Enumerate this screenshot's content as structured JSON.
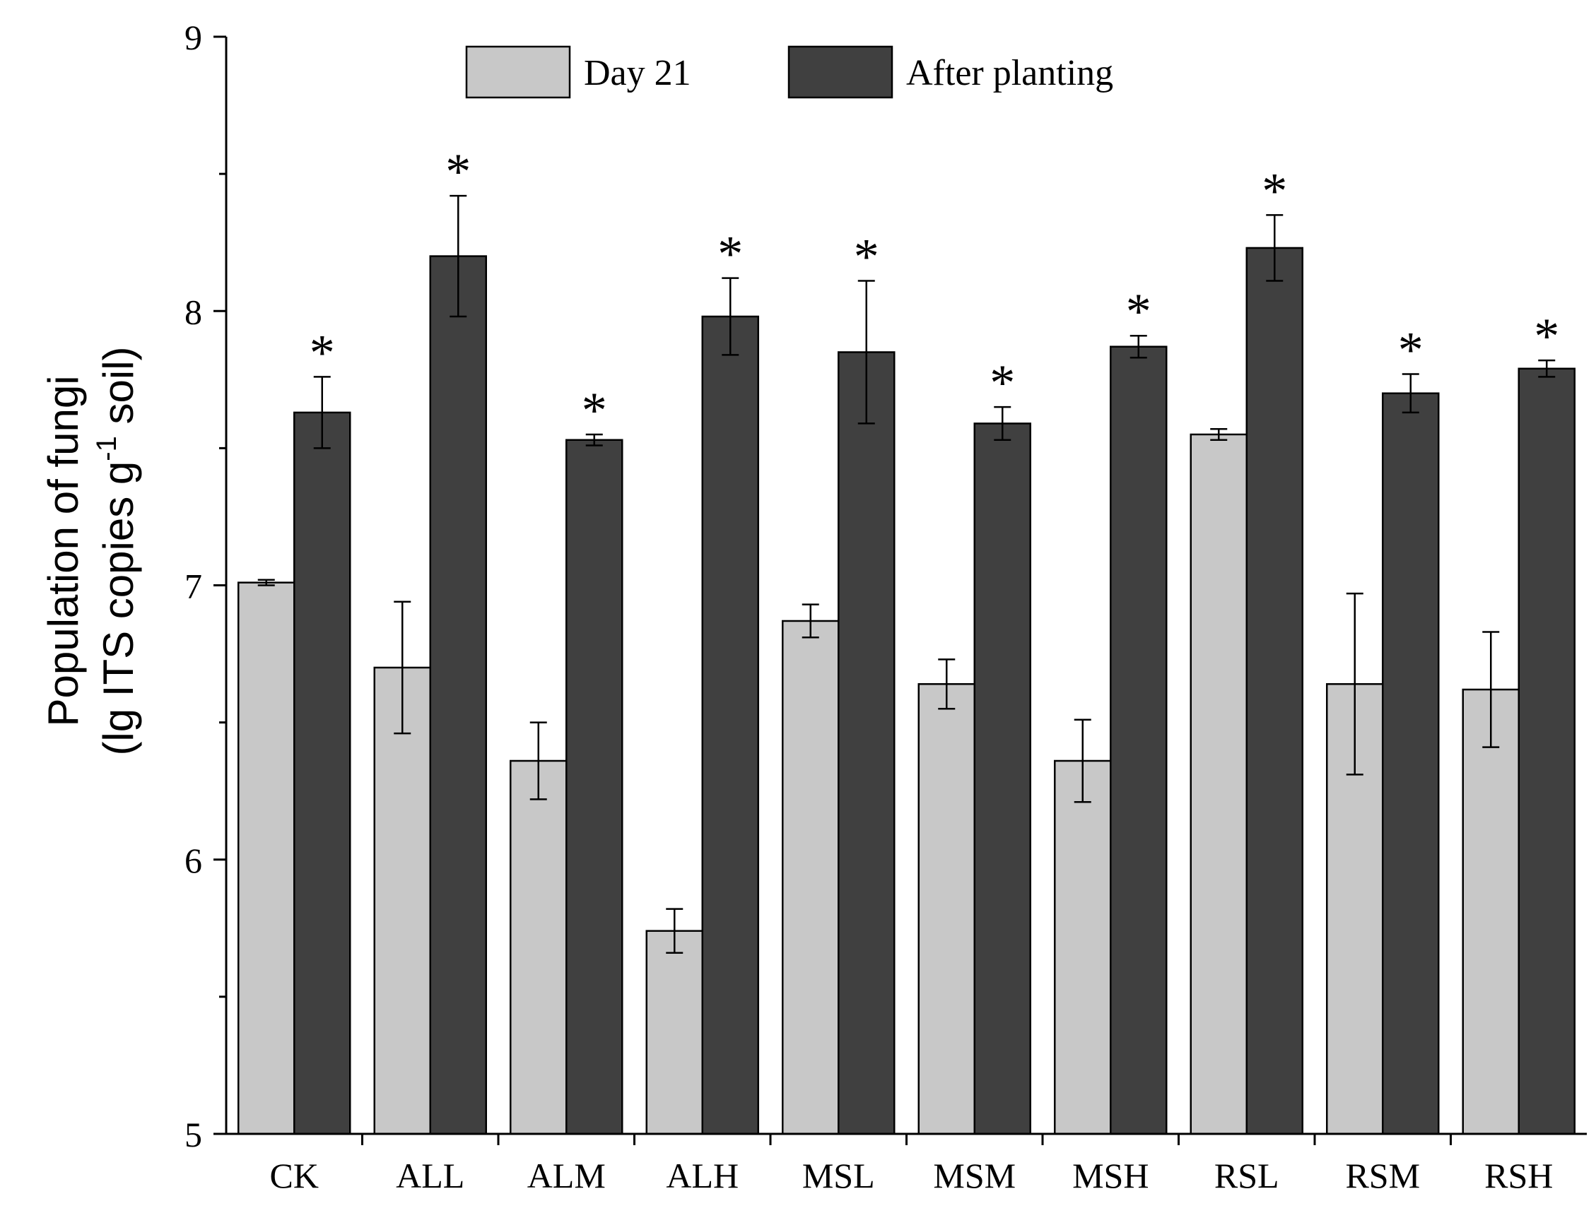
{
  "chart_data": {
    "type": "bar",
    "title": "",
    "xlabel": "",
    "ylabel_line1": "Population of fungi",
    "ylabel_line2_prefix": "(lg ITS copies g",
    "ylabel_line2_sup": "-1",
    "ylabel_line2_suffix": " soil)",
    "ylim": [
      5,
      9
    ],
    "yticks": [
      5,
      6,
      7,
      8,
      9
    ],
    "categories": [
      "CK",
      "ALL",
      "ALM",
      "ALH",
      "MSL",
      "MSM",
      "MSH",
      "RSL",
      "RSM",
      "RSH"
    ],
    "series": [
      {
        "name": "Day 21",
        "color": "#c8c8c8",
        "values": [
          7.01,
          6.7,
          6.36,
          5.74,
          6.87,
          6.64,
          6.36,
          7.55,
          6.64,
          6.62
        ],
        "errors": [
          0.01,
          0.24,
          0.14,
          0.08,
          0.06,
          0.09,
          0.15,
          0.02,
          0.33,
          0.21
        ]
      },
      {
        "name": "After planting",
        "color": "#404040",
        "values": [
          7.63,
          8.2,
          7.53,
          7.98,
          7.85,
          7.59,
          7.87,
          8.23,
          7.7,
          7.79
        ],
        "errors": [
          0.13,
          0.22,
          0.02,
          0.14,
          0.26,
          0.06,
          0.04,
          0.12,
          0.07,
          0.03
        ]
      }
    ],
    "significance_marker": "*",
    "significant": [
      true,
      true,
      true,
      true,
      true,
      true,
      true,
      true,
      true,
      true
    ],
    "legend": {
      "position": "top-center"
    }
  }
}
